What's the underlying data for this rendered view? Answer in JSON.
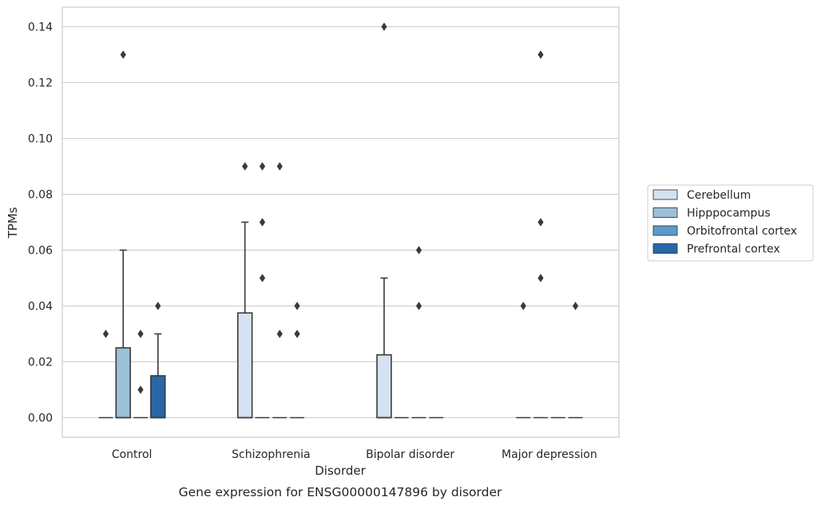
{
  "chart_data": {
    "type": "box",
    "caption": "Gene expression for ENSG00000147896 by disorder",
    "xlabel": "Disorder",
    "ylabel": "TPMs",
    "ylim": [
      -0.007,
      0.147
    ],
    "yticks": [
      "0.00",
      "0.02",
      "0.04",
      "0.06",
      "0.08",
      "0.10",
      "0.12",
      "0.14"
    ],
    "grid": true,
    "legend_position": "right",
    "categories": [
      "Control",
      "Schizophrenia",
      "Bipolar disorder",
      "Major depression"
    ],
    "series": [
      {
        "name": "Cerebellum",
        "color": "#d4e2f1",
        "boxes": [
          {
            "category": "Control",
            "q1": 0,
            "median": 0,
            "q3": 0,
            "whisker_low": 0,
            "whisker_high": 0,
            "outliers": []
          },
          {
            "category": "Schizophrenia",
            "q1": 0,
            "median": 0,
            "q3": 0.0375,
            "whisker_low": 0,
            "whisker_high": 0.07,
            "outliers": [
              0.09
            ]
          },
          {
            "category": "Bipolar disorder",
            "q1": 0,
            "median": 0,
            "q3": 0.0225,
            "whisker_low": 0,
            "whisker_high": 0.05,
            "outliers": [
              0.14
            ]
          },
          {
            "category": "Major depression",
            "q1": 0,
            "median": 0,
            "q3": 0,
            "whisker_low": 0,
            "whisker_high": 0,
            "outliers": []
          }
        ]
      },
      {
        "name": "Hipppocampus",
        "color": "#9cc0da",
        "boxes": [
          {
            "category": "Control",
            "q1": 0,
            "median": 0,
            "q3": 0.025,
            "whisker_low": 0,
            "whisker_high": 0.06,
            "outliers": [
              0.13
            ]
          },
          {
            "category": "Schizophrenia",
            "q1": 0,
            "median": 0,
            "q3": 0,
            "whisker_low": 0,
            "whisker_high": 0,
            "outliers": [
              0.05,
              0.07,
              0.09
            ]
          },
          {
            "category": "Bipolar disorder",
            "q1": 0,
            "median": 0,
            "q3": 0,
            "whisker_low": 0,
            "whisker_high": 0,
            "outliers": []
          },
          {
            "category": "Major depression",
            "q1": 0,
            "median": 0,
            "q3": 0,
            "whisker_low": 0,
            "whisker_high": 0,
            "outliers": [
              0.05,
              0.07,
              0.13
            ]
          }
        ]
      },
      {
        "name": "Orbitofrontal cortex",
        "color": "#5a9bc8",
        "boxes": [
          {
            "category": "Control",
            "q1": 0,
            "median": 0,
            "q3": 0,
            "whisker_low": 0,
            "whisker_high": 0,
            "outliers": [
              0.01,
              0.03
            ]
          },
          {
            "category": "Schizophrenia",
            "q1": 0,
            "median": 0,
            "q3": 0,
            "whisker_low": 0,
            "whisker_high": 0,
            "outliers": [
              0.03,
              0.09
            ]
          },
          {
            "category": "Bipolar disorder",
            "q1": 0,
            "median": 0,
            "q3": 0,
            "whisker_low": 0,
            "whisker_high": 0,
            "outliers": []
          },
          {
            "category": "Major depression",
            "q1": 0,
            "median": 0,
            "q3": 0,
            "whisker_low": 0,
            "whisker_high": 0,
            "outliers": []
          }
        ]
      },
      {
        "name": "Prefrontal cortex",
        "color": "#2867a7",
        "boxes": [
          {
            "category": "Control",
            "q1": 0,
            "median": 0,
            "q3": 0.015,
            "whisker_low": 0,
            "whisker_high": 0.03,
            "outliers": [
              0.04
            ]
          },
          {
            "category": "Schizophrenia",
            "q1": 0,
            "median": 0,
            "q3": 0,
            "whisker_low": 0,
            "whisker_high": 0,
            "outliers": [
              0.03,
              0.04
            ]
          },
          {
            "category": "Bipolar disorder",
            "q1": 0,
            "median": 0,
            "q3": 0,
            "whisker_low": 0,
            "whisker_high": 0,
            "outliers": []
          },
          {
            "category": "Major depression",
            "q1": 0,
            "median": 0,
            "q3": 0,
            "whisker_low": 0,
            "whisker_high": 0,
            "outliers": [
              0.04
            ]
          }
        ]
      }
    ],
    "extra_outliers": [
      {
        "category": "Control",
        "series": "Cerebellum",
        "values": [
          0.03
        ]
      },
      {
        "category": "Bipolar disorder",
        "series": "Orbitofrontal cortex",
        "values": [
          0.04,
          0.06
        ]
      },
      {
        "category": "Major depression",
        "series": "Cerebellum",
        "values": [
          0.04
        ]
      }
    ],
    "colors": {
      "grid": "#cccccc",
      "frame": "#cccccc",
      "box_edge": "#3a3a3a",
      "outlier": "#3a3a3a"
    }
  }
}
